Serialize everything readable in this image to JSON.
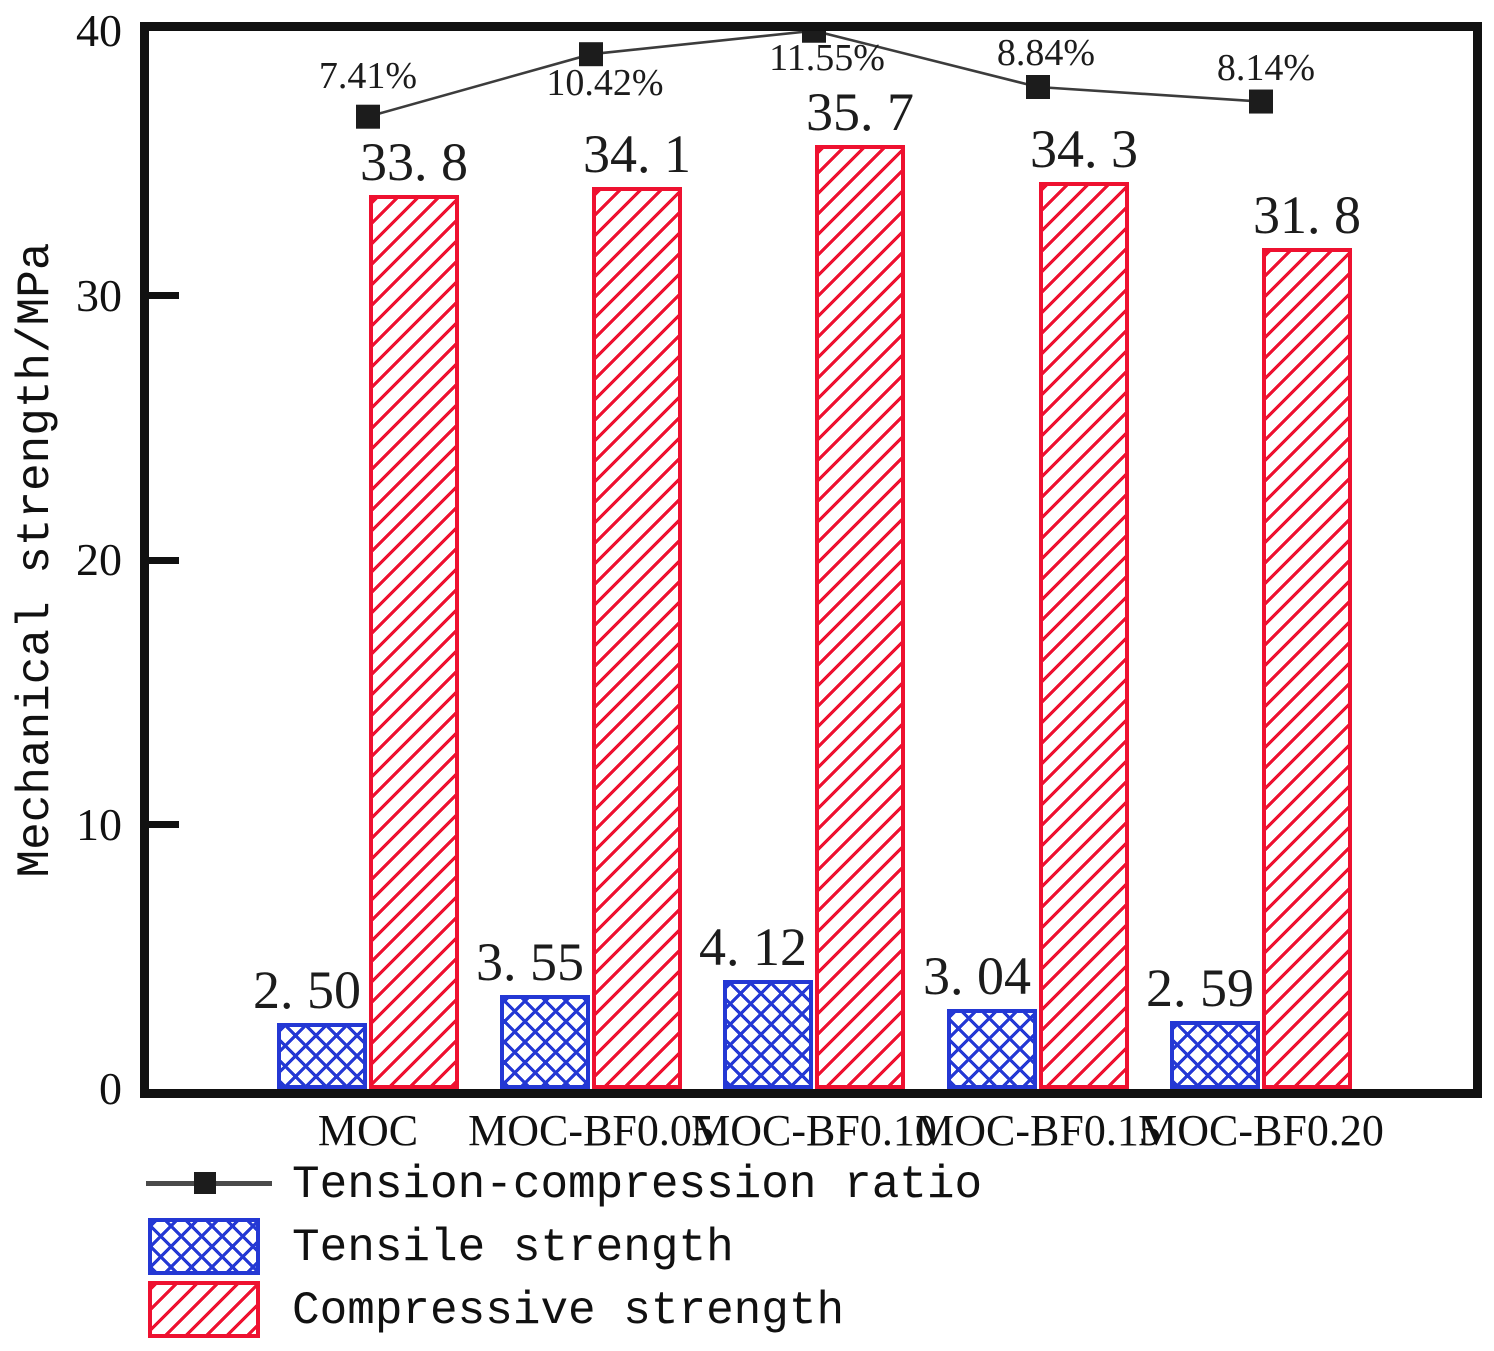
{
  "chart_data": {
    "type": "bar",
    "title": "",
    "ylabel": "Mechanical strength/MPa",
    "ylim": [
      0,
      40
    ],
    "yticks": [
      0,
      10,
      20,
      30,
      40
    ],
    "grid": false,
    "categories": [
      "MOC",
      "MOC-BF0.05",
      "MOC-BF0.10",
      "MOC-BF0.15",
      "MOC-BF0.20"
    ],
    "series": [
      {
        "name": "Tensile strength",
        "type": "bar",
        "color": "#2438d4",
        "hatch": "crosshatch",
        "values": [
          2.5,
          3.55,
          4.12,
          3.04,
          2.59
        ],
        "value_labels": [
          "2. 50",
          "3. 55",
          "4. 12",
          "3. 04",
          "2. 59"
        ]
      },
      {
        "name": "Compressive strength",
        "type": "bar",
        "color": "#ee1130",
        "hatch": "diagonal",
        "values": [
          33.8,
          34.1,
          35.7,
          34.3,
          31.8
        ],
        "value_labels": [
          "33. 8",
          "34. 1",
          "35. 7",
          "34. 3",
          "31. 8"
        ]
      },
      {
        "name": "Tension-compression ratio",
        "type": "line",
        "color": "#1c1c1c",
        "line_color": "#3c3c3c",
        "marker": "filled-square",
        "values_percent": [
          7.41,
          10.42,
          11.55,
          8.84,
          8.14
        ],
        "point_labels": [
          "7.41%",
          "10.42%",
          "11.55%",
          "8.84%",
          "8.14%"
        ]
      }
    ],
    "legend": {
      "position": "bottom-left",
      "entries": [
        "Tension-compression ratio",
        "Tensile strength",
        "Compressive strength"
      ]
    },
    "axis_color": "#111111"
  }
}
